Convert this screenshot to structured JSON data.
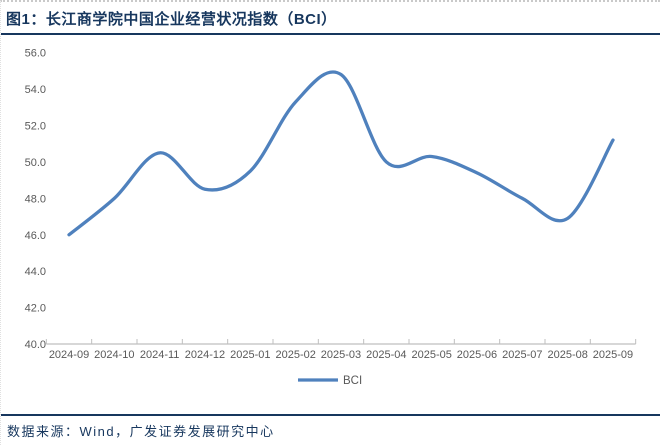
{
  "header": {
    "title": "图1：长江商学院中国企业经营状况指数（BCI）"
  },
  "footer": {
    "source": "数据来源：Wind，广发证券发展研究中心"
  },
  "chart_data": {
    "type": "line",
    "smooth": true,
    "grid": false,
    "categories": [
      "2024-09",
      "2024-10",
      "2024-11",
      "2024-12",
      "2025-01",
      "2025-02",
      "2025-03",
      "2025-04",
      "2025-05",
      "2025-06",
      "2025-07",
      "2025-08",
      "2025-09"
    ],
    "series": [
      {
        "name": "BCI",
        "values": [
          46.0,
          48.0,
          50.5,
          48.5,
          49.5,
          53.3,
          54.8,
          50.0,
          50.3,
          49.4,
          48.0,
          46.9,
          51.2
        ]
      }
    ],
    "ylim": [
      40.0,
      56.0
    ],
    "ytick_step": 2.0,
    "ytick_labels": [
      "56.0",
      "54.0",
      "52.0",
      "50.0",
      "48.0",
      "46.0",
      "44.0",
      "42.0",
      "40.0"
    ],
    "xlabel": "",
    "ylabel": "",
    "legend": {
      "position": "bottom",
      "entries": [
        "BCI"
      ]
    },
    "colors": {
      "line_blue": "#4F81BD",
      "axis_gray": "#bfbfbf",
      "label_gray": "#595959",
      "accent_navy": "#17375e"
    }
  }
}
